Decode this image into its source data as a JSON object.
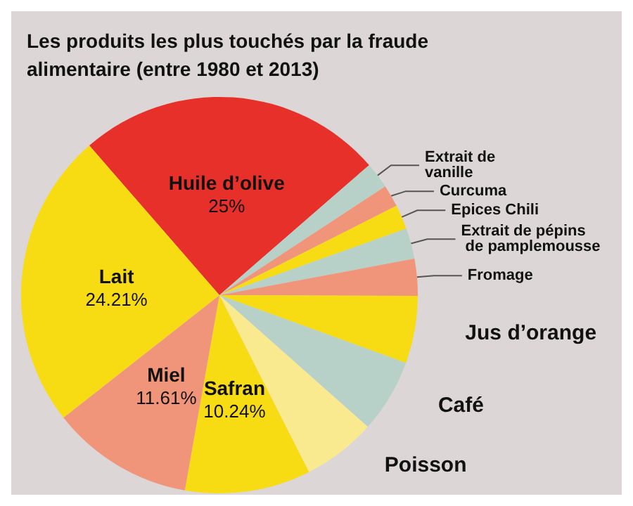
{
  "chart_data": {
    "type": "pie",
    "title": "Les produits les plus touchés par la fraude alimentaire (entre 1980 et 2013)",
    "categories": [
      "Huile d’olive",
      "Extrait de vanille",
      "Curcuma",
      "Epices Chili",
      "Extrait de pépins de pamplemousse",
      "Fromage",
      "Jus d’orange",
      "Café",
      "Poisson",
      "Safran",
      "Miel",
      "Lait"
    ],
    "values": [
      25,
      2.14,
      1.8,
      2,
      2.5,
      3,
      5.5,
      6,
      6,
      10.24,
      11.61,
      24.21
    ],
    "value_labels": [
      "25%",
      null,
      null,
      null,
      null,
      null,
      null,
      null,
      null,
      "10.24%",
      "11.61%",
      "24.21%"
    ],
    "colors": [
      "#e8302a",
      "#b7d1c8",
      "#f0957a",
      "#f7dc13",
      "#b7d1c8",
      "#f0957a",
      "#f7dc13",
      "#b7d1c8",
      "#f9e98f",
      "#f7dc13",
      "#f0957a",
      "#f7dc13"
    ],
    "legend": false
  }
}
